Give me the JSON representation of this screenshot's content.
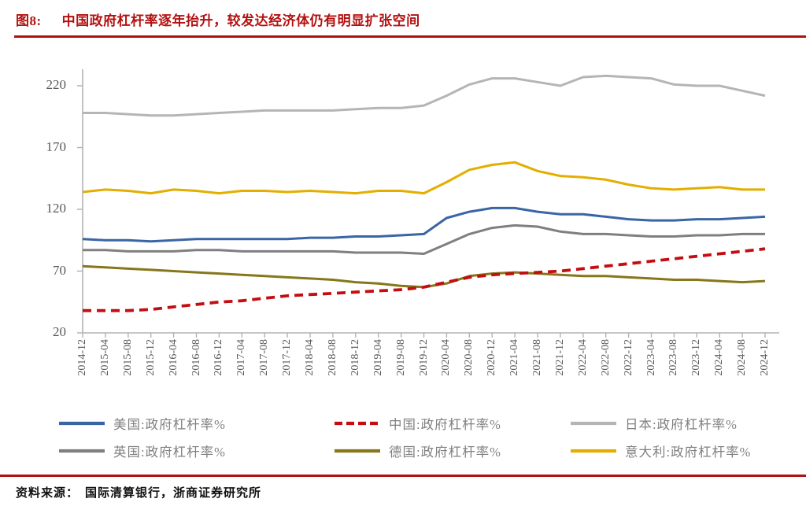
{
  "title": {
    "prefix": "图8:",
    "text": "中国政府杠杆率逐年抬升，较发达经济体仍有明显扩张空间"
  },
  "source": {
    "label": "资料来源：",
    "text": "国际清算银行，浙商证券研究所"
  },
  "colors": {
    "accent_red": "#b01111",
    "axis": "#b3b3b3",
    "tick_label": "#595959",
    "legend_text": "#808080"
  },
  "chart_data": {
    "type": "line",
    "title": "中国政府杠杆率逐年抬升，较发达经济体仍有明显扩张空间",
    "ylim": [
      20,
      220
    ],
    "yticks": [
      220,
      170,
      120,
      70,
      20
    ],
    "grid": false,
    "legend_position": "bottom",
    "categories": [
      "2014-12",
      "2015-04",
      "2015-08",
      "2015-12",
      "2016-04",
      "2016-08",
      "2016-12",
      "2017-04",
      "2017-08",
      "2017-12",
      "2018-04",
      "2018-08",
      "2018-12",
      "2019-04",
      "2019-08",
      "2019-12",
      "2020-04",
      "2020-08",
      "2020-12",
      "2021-04",
      "2021-08",
      "2021-12",
      "2022-04",
      "2022-08",
      "2022-12",
      "2023-04",
      "2023-08",
      "2023-12",
      "2024-04",
      "2024-08",
      "2024-12"
    ],
    "series": [
      {
        "id": "japan",
        "name": "日本:政府杠杆率%",
        "color": "#b5b5b5",
        "dash": null,
        "values": [
          198,
          198,
          197,
          196,
          196,
          197,
          198,
          199,
          200,
          200,
          200,
          200,
          201,
          202,
          202,
          204,
          212,
          221,
          226,
          226,
          223,
          220,
          227,
          228,
          227,
          226,
          221,
          220,
          220,
          216,
          212
        ]
      },
      {
        "id": "italy",
        "name": "意大利:政府杠杆率%",
        "color": "#e2ae00",
        "dash": null,
        "values": [
          134,
          136,
          135,
          133,
          136,
          135,
          133,
          135,
          135,
          134,
          135,
          134,
          133,
          135,
          135,
          133,
          142,
          152,
          156,
          158,
          151,
          147,
          146,
          144,
          140,
          137,
          136,
          137,
          138,
          136,
          136
        ]
      },
      {
        "id": "usa",
        "name": "美国:政府杠杆率%",
        "color": "#3a65a5",
        "dash": null,
        "values": [
          96,
          95,
          95,
          94,
          95,
          96,
          96,
          96,
          96,
          96,
          97,
          97,
          98,
          98,
          99,
          100,
          113,
          118,
          121,
          121,
          118,
          116,
          116,
          114,
          112,
          111,
          111,
          112,
          112,
          113,
          114
        ]
      },
      {
        "id": "uk",
        "name": "英国:政府杠杆率%",
        "color": "#7f7f7f",
        "dash": null,
        "values": [
          87,
          87,
          86,
          86,
          86,
          87,
          87,
          86,
          86,
          86,
          86,
          86,
          85,
          85,
          85,
          84,
          92,
          100,
          105,
          107,
          106,
          102,
          100,
          100,
          99,
          98,
          98,
          99,
          99,
          100,
          100
        ]
      },
      {
        "id": "germany",
        "name": "德国:政府杠杆率%",
        "color": "#87761a",
        "dash": null,
        "values": [
          74,
          73,
          72,
          71,
          70,
          69,
          68,
          67,
          66,
          65,
          64,
          63,
          61,
          60,
          58,
          57,
          60,
          66,
          68,
          69,
          68,
          67,
          66,
          66,
          65,
          64,
          63,
          63,
          62,
          61,
          62
        ]
      },
      {
        "id": "china",
        "name": "中国:政府杠杆率%",
        "color": "#c40d12",
        "dash": "11,7",
        "values": [
          38,
          38,
          38,
          39,
          41,
          43,
          45,
          46,
          48,
          50,
          51,
          52,
          53,
          54,
          55,
          57,
          61,
          65,
          67,
          68,
          69,
          70,
          72,
          74,
          76,
          78,
          80,
          82,
          84,
          86,
          88
        ]
      }
    ],
    "legend_order": [
      "usa",
      "china",
      "japan",
      "uk",
      "germany",
      "italy"
    ]
  }
}
